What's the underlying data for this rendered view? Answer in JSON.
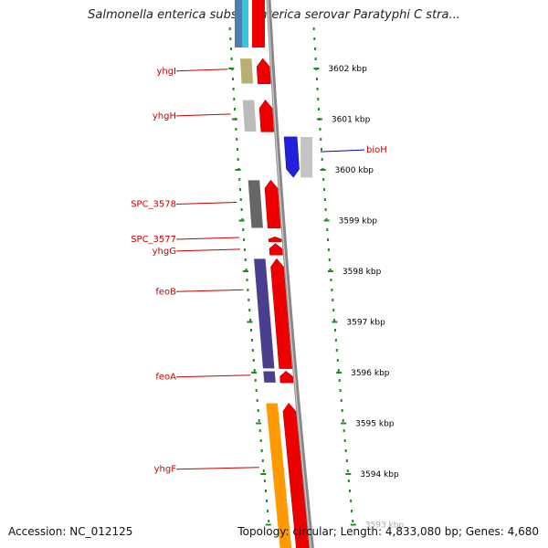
{
  "title": "Salmonella enterica subsp. enterica serovar Paratyphi C stra...",
  "footer": {
    "accession": "Accession: NC_012125",
    "topology": "Topology: circular; Length: 4,833,080 bp; Genes: 4,680"
  },
  "colors": {
    "forward_arrow": "#ee0000",
    "reverse_arrow": "#0000ee",
    "tick": "#228822",
    "label_forward": "#cc0000",
    "label_reverse": "#0000cc",
    "axis": "#888888"
  },
  "scale": {
    "unit": "kbp",
    "ticks": [
      {
        "kbp": 3602,
        "label": "3602 kbp"
      },
      {
        "kbp": 3601,
        "label": "3601 kbp"
      },
      {
        "kbp": 3600,
        "label": "3600 kbp"
      },
      {
        "kbp": 3599,
        "label": "3599 kbp"
      },
      {
        "kbp": 3598,
        "label": "3598 kbp"
      },
      {
        "kbp": 3597,
        "label": "3597 kbp"
      },
      {
        "kbp": 3596,
        "label": "3596 kbp"
      },
      {
        "kbp": 3595,
        "label": "3595 kbp"
      },
      {
        "kbp": 3594,
        "label": "3594 kbp"
      },
      {
        "kbp": 3593,
        "label": "3593 kbp"
      }
    ]
  },
  "genes": [
    {
      "name": "yhgI",
      "strand": "forward",
      "start_kbp": 3601.7,
      "end_kbp": 3602.2,
      "cog_color": "#b8b070"
    },
    {
      "name": "yhgH",
      "strand": "forward",
      "start_kbp": 3600.75,
      "end_kbp": 3601.38,
      "cog_color": "#bbbbbb"
    },
    {
      "name": "bioH",
      "strand": "reverse",
      "start_kbp": 3599.85,
      "end_kbp": 3600.65,
      "cog_color": "#2222dd"
    },
    {
      "name": "SPC_3578",
      "strand": "forward",
      "start_kbp": 3598.85,
      "end_kbp": 3599.8,
      "cog_color": "#666666"
    },
    {
      "name": "SPC_3577",
      "strand": "forward",
      "start_kbp": 3598.58,
      "end_kbp": 3598.68,
      "cog_color": ""
    },
    {
      "name": "yhgG",
      "strand": "forward",
      "start_kbp": 3598.32,
      "end_kbp": 3598.55,
      "cog_color": ""
    },
    {
      "name": "feoB",
      "strand": "forward",
      "start_kbp": 3596.08,
      "end_kbp": 3598.25,
      "cog_color": "#4a3f8f"
    },
    {
      "name": "feoA",
      "strand": "forward",
      "start_kbp": 3595.8,
      "end_kbp": 3596.03,
      "cog_color": "#4a3f8f"
    },
    {
      "name": "yhgF",
      "strand": "forward",
      "start_kbp": 3592.5,
      "end_kbp": 3595.4,
      "cog_color": "#ff9900"
    }
  ]
}
